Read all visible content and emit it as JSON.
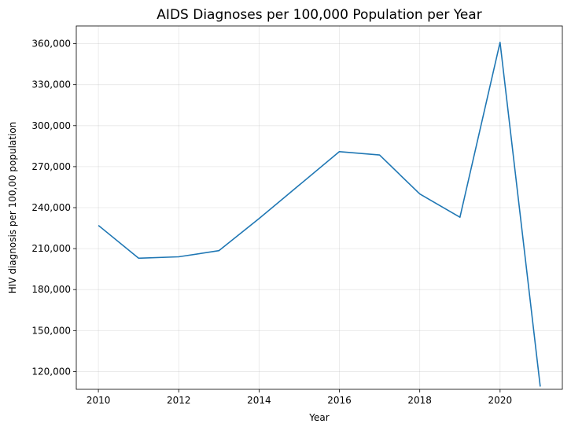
{
  "chart_data": {
    "type": "line",
    "title": "AIDS Diagnoses per 100,000 Population per Year",
    "xlabel": "Year",
    "ylabel": "HIV diagnosis per 100,00 population",
    "xlim": [
      2009.45,
      2021.55
    ],
    "ylim": [
      373000,
      107000
    ],
    "y_inverted": true,
    "grid": true,
    "x_ticks": [
      2010,
      2012,
      2014,
      2016,
      2018,
      2020
    ],
    "x_tick_labels": [
      "2010",
      "2012",
      "2014",
      "2016",
      "2018",
      "2020"
    ],
    "y_ticks": [
      120000,
      150000,
      180000,
      210000,
      240000,
      270000,
      300000,
      330000,
      360000
    ],
    "y_tick_labels": [
      "120,000",
      "150,000",
      "180,000",
      "210,000",
      "240,000",
      "270,000",
      "300,000",
      "330,000",
      "360,000"
    ],
    "series": [
      {
        "color": "#1f77b4",
        "x": [
          2010,
          2011,
          2012,
          2013,
          2014,
          2015,
          2016,
          2017,
          2018,
          2019,
          2020,
          2021
        ],
        "y": [
          227000,
          203000,
          204000,
          208500,
          232000,
          256500,
          281000,
          278500,
          250000,
          233000,
          361000,
          109000
        ]
      }
    ]
  }
}
